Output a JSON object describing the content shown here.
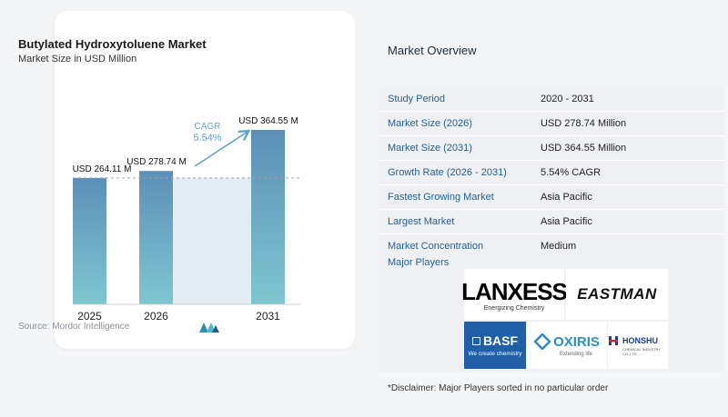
{
  "chart_data": {
    "type": "bar",
    "title": "Butylated Hydroxytoluene Market",
    "subtitle": "Market Size in USD Million",
    "categories": [
      "2025",
      "2026",
      "2031"
    ],
    "values": [
      264.11,
      278.74,
      364.55
    ],
    "value_labels": [
      "USD 264.11 M",
      "USD 278.74 M",
      "USD 364.55 M"
    ],
    "cagr_label": "CAGR",
    "cagr_value": "5.54%",
    "bar_color": "#5b8fb5",
    "source": "Source:  Mordor Intelligence"
  },
  "overview": {
    "title": "Market Overview",
    "rows": [
      {
        "label": "Study Period",
        "value": "2020 - 2031"
      },
      {
        "label": "Market Size (2026)",
        "value": "USD 278.74 Million"
      },
      {
        "label": "Market Size (2031)",
        "value": "USD 364.55 Million"
      },
      {
        "label": "Growth Rate (2026 - 2031)",
        "value": "5.54% CAGR"
      },
      {
        "label": "Fastest Growing Market",
        "value": "Asia Pacific"
      },
      {
        "label": "Largest Market",
        "value": "Asia Pacific"
      },
      {
        "label": "Market Concentration",
        "value": "Medium"
      }
    ],
    "players_title": "Major Players",
    "players": {
      "lanxess": "LANXESS",
      "lanxess_tagline": "Energizing Chemistry",
      "eastman": "EASTMAN",
      "basf": "BASF",
      "basf_tagline": "We create chemistry",
      "oxiris": "OXIRIS",
      "oxiris_tagline": "Extending life",
      "honshu": "HONSHU",
      "honshu_tagline": "CHEMICAL INDUSTRY CO.,LTD."
    },
    "disclaimer": "*Disclaimer: Major Players sorted in no particular order"
  }
}
